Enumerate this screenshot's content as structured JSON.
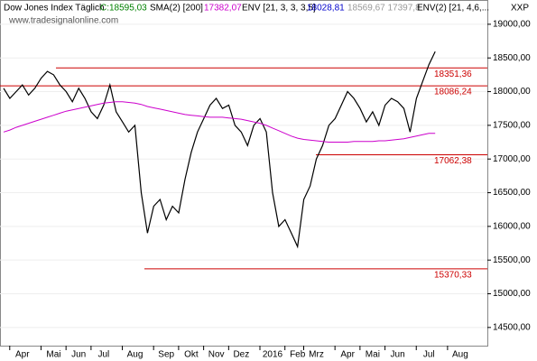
{
  "header": {
    "title": "Dow Jones Index Täglich",
    "close": "C:18595,03",
    "sma_name": "SMA(2) [200]",
    "sma_value": "17382,07",
    "env_name": "ENV [21, 3, 3, 3,5]",
    "env_value": "18028,81",
    "env_extra": "18569,67  17397,8",
    "env2_name": "ENV(2) [21, 4,6,...",
    "symbol": "XXP",
    "website": "www.tradesignalonline.com"
  },
  "chart_data": {
    "type": "line",
    "categories": [
      null,
      null,
      null,
      "Apr",
      null,
      null,
      null,
      null,
      "Mai",
      null,
      null,
      null,
      "Jun",
      null,
      null,
      null,
      "Jul",
      null,
      null,
      null,
      null,
      "Aug",
      null,
      null,
      null,
      null,
      "Sep",
      null,
      null,
      null,
      "Okt",
      null,
      null,
      null,
      "Nov",
      null,
      null,
      null,
      "Dez",
      null,
      null,
      null,
      null,
      "2016",
      null,
      null,
      null,
      "Feb",
      null,
      null,
      "Mrz",
      null,
      null,
      null,
      null,
      "Apr",
      null,
      null,
      null,
      "Mai",
      null,
      null,
      null,
      "Jun",
      null,
      null,
      null,
      null,
      "Jul",
      null,
      null,
      null,
      null,
      "Aug",
      null
    ],
    "series": [
      {
        "name": "Dow Jones",
        "color": "#000000",
        "values": [
          18050,
          17900,
          18000,
          18100,
          17950,
          18050,
          18200,
          18300,
          18250,
          18100,
          18000,
          17850,
          18050,
          17900,
          17700,
          17600,
          17800,
          18100,
          17700,
          17550,
          17400,
          17500,
          16500,
          15900,
          16300,
          16400,
          16100,
          16300,
          16200,
          16700,
          17100,
          17400,
          17600,
          17800,
          17900,
          17750,
          17800,
          17500,
          17400,
          17200,
          17500,
          17600,
          17400,
          16500,
          16000,
          16100,
          15900,
          15700,
          16400,
          16600,
          17000,
          17200,
          17500,
          17600,
          17800,
          18000,
          17900,
          17750,
          17550,
          17700,
          17500,
          17800,
          17900,
          17850,
          17750,
          17400,
          17900,
          18150,
          18400,
          18595,
          null,
          null,
          null,
          null,
          null
        ]
      },
      {
        "name": "SMA(2) [200]",
        "color": "#cc00cc",
        "values": [
          17400,
          17430,
          17470,
          17500,
          17530,
          17560,
          17590,
          17620,
          17650,
          17680,
          17710,
          17730,
          17750,
          17770,
          17790,
          17810,
          17830,
          17840,
          17850,
          17850,
          17840,
          17830,
          17810,
          17780,
          17760,
          17740,
          17720,
          17700,
          17680,
          17660,
          17650,
          17640,
          17630,
          17620,
          17620,
          17620,
          17610,
          17600,
          17590,
          17570,
          17550,
          17530,
          17500,
          17460,
          17420,
          17380,
          17340,
          17310,
          17290,
          17280,
          17270,
          17260,
          17250,
          17250,
          17250,
          17250,
          17260,
          17260,
          17260,
          17260,
          17270,
          17270,
          17280,
          17290,
          17300,
          17320,
          17340,
          17360,
          17380,
          17382,
          null,
          null,
          null,
          null,
          null
        ]
      }
    ],
    "levels": {
      "color": "#cc0000",
      "values": [
        18351.36,
        18086.24,
        17062.38,
        15370.33
      ],
      "value_labels": [
        "18351,36",
        "18086,24",
        "17062,38",
        "15370,33"
      ]
    },
    "ylim": [
      14230,
      19360
    ],
    "yticks": [
      {
        "value": 14500,
        "label": "14500,00"
      },
      {
        "value": 15000,
        "label": "15000,00"
      },
      {
        "value": 15500,
        "label": "15500,00"
      },
      {
        "value": 16000,
        "label": "16000,00"
      },
      {
        "value": 16500,
        "label": "16500,00"
      },
      {
        "value": 17000,
        "label": "17000,00"
      },
      {
        "value": 17500,
        "label": "17500,00"
      },
      {
        "value": 18000,
        "label": "18000,00"
      },
      {
        "value": 18500,
        "label": "18500,00"
      },
      {
        "value": 19000,
        "label": "19000,00"
      }
    ],
    "grid": true
  }
}
